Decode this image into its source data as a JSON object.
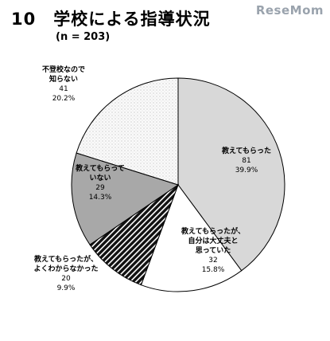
{
  "page": {
    "title": "10　学校による指導状況",
    "sample_size": "(n = 203)",
    "watermark": "ReseMom"
  },
  "chart_data": {
    "type": "pie",
    "title": "10　学校による指導状況",
    "subtitle": "(n = 203)",
    "start_angle_deg": 0,
    "direction": "clockwise",
    "slices": [
      {
        "label_lines": [
          "教えてもらった"
        ],
        "count": "81",
        "percent": "39.9%",
        "value": 39.9,
        "fill": "#d8d8d8",
        "pattern": "none"
      },
      {
        "label_lines": [
          "教えてもらったが、",
          "自分は大丈夫と",
          "思っていた"
        ],
        "count": "32",
        "percent": "15.8%",
        "value": 15.8,
        "fill": "#ffffff",
        "pattern": "none"
      },
      {
        "label_lines": [
          "教えてもらったが、",
          "よくわからなかった"
        ],
        "count": "20",
        "percent": "9.9%",
        "value": 9.9,
        "fill": "#222222",
        "pattern": "diagonal-stripes"
      },
      {
        "label_lines": [
          "教えてもらって",
          "いない"
        ],
        "count": "29",
        "percent": "14.3%",
        "value": 14.3,
        "fill": "#a8a8a8",
        "pattern": "none"
      },
      {
        "label_lines": [
          "不登校なので",
          "知らない"
        ],
        "count": "41",
        "percent": "20.2%",
        "value": 20.2,
        "fill": "#f4f4f4",
        "pattern": "dots"
      }
    ]
  }
}
